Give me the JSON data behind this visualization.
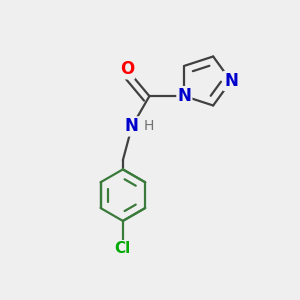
{
  "background_color": "#efefef",
  "bond_color": "#3a7a3a",
  "bond_color_dark": "#404040",
  "bond_width": 1.6,
  "dbo": 0.038,
  "atoms": {
    "O": {
      "color": "#ff0000",
      "fontsize": 12,
      "fontweight": "bold"
    },
    "N": {
      "color": "#0000cc",
      "fontsize": 12,
      "fontweight": "bold"
    },
    "H": {
      "color": "#707070",
      "fontsize": 10,
      "fontweight": "normal"
    },
    "Cl": {
      "color": "#00aa00",
      "fontsize": 11,
      "fontweight": "bold"
    },
    "C": {
      "color": "#404040",
      "fontsize": 10,
      "fontweight": "normal"
    }
  },
  "xlim": [
    0,
    3.0
  ],
  "ylim": [
    0,
    3.2
  ]
}
